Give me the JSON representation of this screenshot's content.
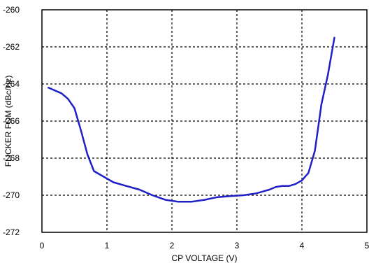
{
  "chart_data": {
    "type": "line",
    "title": "",
    "xlabel": "CP VOLTAGE (V)",
    "ylabel": "FLICKER FOM (dBc/Hz)",
    "xlim": [
      0,
      5
    ],
    "ylim": [
      -272,
      -260
    ],
    "xticks": [
      0,
      1,
      2,
      3,
      4,
      5
    ],
    "yticks": [
      -260,
      -262,
      -264,
      -266,
      -268,
      -270,
      -272
    ],
    "xtick_labels": [
      "0",
      "1",
      "2",
      "3",
      "4",
      "5"
    ],
    "ytick_labels": [
      "-260",
      "-262",
      "-264",
      "-266",
      "-268",
      "-270",
      "-272"
    ],
    "grid": true,
    "series": [
      {
        "color": "#1f1fc8",
        "x": [
          0.1,
          0.3,
          0.4,
          0.5,
          0.6,
          0.7,
          0.8,
          1.0,
          1.1,
          1.3,
          1.5,
          1.7,
          1.9,
          2.1,
          2.3,
          2.5,
          2.7,
          2.9,
          3.1,
          3.3,
          3.5,
          3.6,
          3.7,
          3.8,
          3.9,
          4.0,
          4.1,
          4.2,
          4.3,
          4.4,
          4.5
        ],
        "y": [
          -264.2,
          -264.5,
          -264.8,
          -265.3,
          -266.5,
          -267.8,
          -268.7,
          -269.1,
          -269.3,
          -269.5,
          -269.7,
          -270.0,
          -270.25,
          -270.35,
          -270.35,
          -270.25,
          -270.1,
          -270.05,
          -270.0,
          -269.9,
          -269.7,
          -269.55,
          -269.5,
          -269.5,
          -269.4,
          -269.2,
          -268.8,
          -267.6,
          -265.1,
          -263.5,
          -261.5
        ]
      }
    ]
  }
}
